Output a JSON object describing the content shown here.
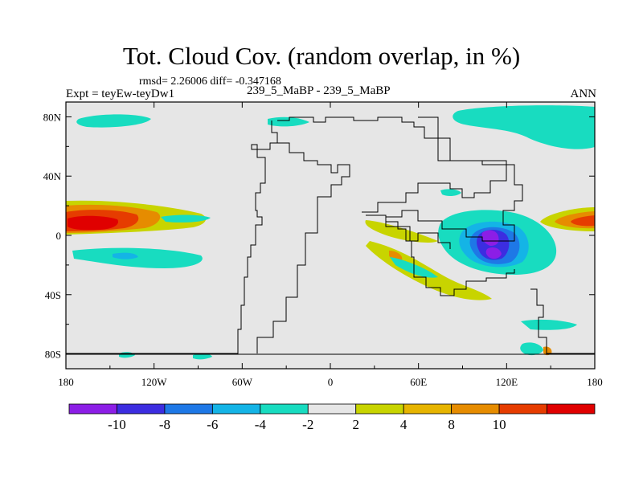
{
  "chart_data": {
    "type": "heatmap",
    "title": "Tot. Cloud Cov. (random overlap, in %)",
    "stats_text": "rmsd= 2.26006 diff= -0.347168",
    "experiment_text": "Expt = teyEw-teyDw1",
    "subtitle": "239_5_MaBP - 239_5_MaBP",
    "season": "ANN",
    "x_ticks": [
      "180",
      "120W",
      "60W",
      "0",
      "60E",
      "120E",
      "180"
    ],
    "x_tick_values": [
      -180,
      -120,
      -60,
      0,
      60,
      120,
      180
    ],
    "y_ticks": [
      "80N",
      "40N",
      "0",
      "40S",
      "80S"
    ],
    "y_tick_values": [
      80,
      40,
      0,
      -40,
      -80
    ],
    "xlim": [
      -180,
      180
    ],
    "ylim": [
      -90,
      90
    ],
    "colorbar": {
      "levels": [
        "-10",
        "-8",
        "-6",
        "-4",
        "-2",
        "2",
        "4",
        "8",
        "10"
      ],
      "level_values": [
        -10,
        -8,
        -6,
        -4,
        -2,
        2,
        4,
        8,
        10
      ],
      "colors": [
        "#8c1ee6",
        "#3c2de0",
        "#1e78e6",
        "#14b4e6",
        "#18dcc0",
        "#e6e6e6",
        "#c8d400",
        "#e6b400",
        "#e68c00",
        "#e63c00",
        "#e00000"
      ]
    },
    "anomaly_regions": [
      {
        "lon": 128,
        "lat": 0,
        "rlon": 26,
        "rlat": 32,
        "level": 1
      },
      {
        "lon": 118,
        "lat": 0,
        "rlon": 9,
        "rlat": 11,
        "level": -4
      },
      {
        "lon": 118,
        "lat": -11,
        "rlon": 6,
        "rlat": 5,
        "level": -4
      },
      {
        "lon": 88,
        "lat": 79,
        "rlon": 60,
        "rlat": 6,
        "level": 1
      },
      {
        "lon": -125,
        "lat": -15,
        "rlon": 40,
        "rlat": 4,
        "level": 1
      },
      {
        "lon": -158,
        "lat": 10,
        "rlon": 22,
        "rlat": 8,
        "level": 4
      },
      {
        "lon": 172,
        "lat": 10,
        "rlon": 10,
        "rlat": 6,
        "level": 4
      },
      {
        "lon": 55,
        "lat": -16,
        "rlon": 25,
        "rlat": 5,
        "level": 2
      },
      {
        "lon": 138,
        "lat": -80,
        "rlon": 5,
        "rlat": 3,
        "level": 1
      }
    ]
  }
}
